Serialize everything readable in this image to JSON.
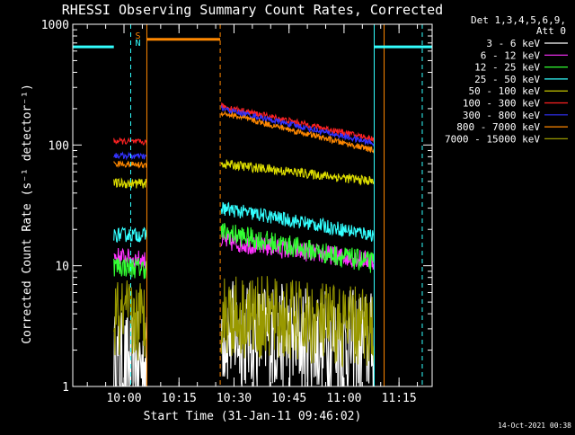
{
  "chart_data": {
    "type": "line",
    "title": "RHESSI Observing Summary Count Rates, Corrected",
    "xlabel": "Start Time (31-Jan-11 09:46:02)",
    "ylabel": "Corrected Count Rate (s⁻¹ detector⁻¹)",
    "y_scale": "log",
    "ylim": [
      1,
      1000
    ],
    "xlim_minutes_after_start": [
      0,
      98
    ],
    "x_ticks": [
      {
        "label": "10:00",
        "t": 13.97
      },
      {
        "label": "10:15",
        "t": 28.97
      },
      {
        "label": "10:30",
        "t": 43.97
      },
      {
        "label": "10:45",
        "t": 58.97
      },
      {
        "label": "11:00",
        "t": 73.97
      },
      {
        "label": "11:15",
        "t": 88.97
      }
    ],
    "y_ticks": [
      {
        "label": "1",
        "v": 1
      },
      {
        "label": "10",
        "v": 10
      },
      {
        "label": "100",
        "v": 100
      },
      {
        "label": "1000",
        "v": 1000
      }
    ],
    "legend": {
      "header": [
        "Det 1,3,4,5,6,9,",
        "Att 0"
      ],
      "position": "right"
    },
    "segments": [
      [
        11.2,
        20.2
      ],
      [
        40.5,
        82.2
      ]
    ],
    "series": [
      {
        "name": "3 - 6 keV",
        "color": "#ffffff",
        "seg1": [
          1.5,
          1.5
        ],
        "seg2": [
          2.8,
          2.2
        ],
        "noise": 0.45
      },
      {
        "name": "6 - 12 keV",
        "color": "#ff33ff",
        "seg1": [
          12,
          11
        ],
        "seg2": [
          16,
          11
        ],
        "noise": 0.08
      },
      {
        "name": "12 - 25 keV",
        "color": "#33ff33",
        "seg1": [
          10,
          9.5
        ],
        "seg2": [
          19,
          10.5
        ],
        "noise": 0.09
      },
      {
        "name": "25 - 50 keV",
        "color": "#33ffff",
        "seg1": [
          18,
          18
        ],
        "seg2": [
          30,
          18
        ],
        "noise": 0.06
      },
      {
        "name": "50 - 100 keV",
        "color": "#dddd00",
        "seg1": [
          48,
          48
        ],
        "seg2": [
          70,
          50
        ],
        "noise": 0.04
      },
      {
        "name": "100 - 300 keV",
        "color": "#ff2222",
        "seg1": [
          108,
          105
        ],
        "seg2": [
          210,
          112
        ],
        "noise": 0.025
      },
      {
        "name": "300 - 800 keV",
        "color": "#3333ff",
        "seg1": [
          82,
          80
        ],
        "seg2": [
          200,
          103
        ],
        "noise": 0.025
      },
      {
        "name": "800 - 7000 keV",
        "color": "#ff8800",
        "seg1": [
          70,
          68
        ],
        "seg2": [
          185,
          90
        ],
        "noise": 0.025
      },
      {
        "name": "7000 - 15000 keV",
        "color": "#999900",
        "seg1": [
          3.5,
          3.5
        ],
        "seg2": [
          4,
          3
        ],
        "noise": 0.35
      }
    ],
    "annotations": {
      "saa_label": "S",
      "night_label": "N",
      "saa_color": "#ff8800",
      "night_color": "#33ffff",
      "saa_bar": {
        "t_start": 20.2,
        "t_end": 40.2,
        "value": 750
      },
      "night_bars": [
        {
          "t_start": 0,
          "t_end": 11.2,
          "value": 650
        },
        {
          "t_start": 82.2,
          "t_end": 98,
          "value": 650
        }
      ],
      "night_solid_lines": [
        0,
        82.2
      ],
      "night_dashed_lines": [
        15.8,
        95.3
      ],
      "saa_solid_lines": [
        20.2,
        84.9
      ],
      "saa_dashed_lines": [
        40.2
      ],
      "axis_color": "#ffffff"
    },
    "footer_date": "14-Oct-2021 00:38"
  }
}
